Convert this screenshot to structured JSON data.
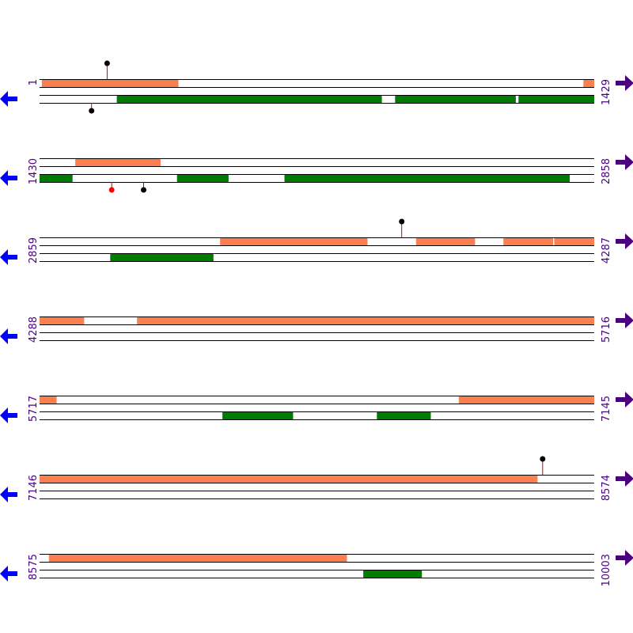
{
  "colors": {
    "forward_feature": "#fa8050",
    "reverse_feature": "#007d00",
    "track_line": "#000000",
    "left_arrow": "#0000ff",
    "right_arrow": "#4b0082",
    "label": "#4b0082",
    "pin_black": "#000000",
    "pin_red": "#ff0000",
    "pin_stem": "#cc0000"
  },
  "icons": {
    "left": "left-arrow-icon",
    "right": "right-arrow-icon"
  },
  "rows": [
    {
      "start": 1,
      "end": 1429,
      "start_label": "1",
      "end_label": "1429",
      "forward": [
        [
          7,
          358
        ],
        [
          1402,
          1429
        ]
      ],
      "reverse": [
        [
          200,
          882
        ],
        [
          917,
          1227
        ],
        [
          1235,
          1429
        ]
      ],
      "markers": [
        {
          "pos": 175,
          "strand": "forward",
          "color": "black"
        },
        {
          "pos": 135,
          "strand": "reverse",
          "color": "black"
        }
      ]
    },
    {
      "start": 1430,
      "end": 2858,
      "start_label": "1430",
      "end_label": "2858",
      "forward": [
        [
          1522,
          1741
        ]
      ],
      "reverse": [
        [
          1430,
          1514
        ],
        [
          1784,
          1916
        ],
        [
          2061,
          2795
        ]
      ],
      "markers": [
        {
          "pos": 1616,
          "strand": "reverse",
          "color": "red"
        },
        {
          "pos": 1698,
          "strand": "reverse",
          "color": "black"
        }
      ]
    },
    {
      "start": 2859,
      "end": 4287,
      "start_label": "2859",
      "end_label": "4287",
      "forward": [
        [
          3324,
          3703
        ],
        [
          3829,
          3980
        ],
        [
          4054,
          4181
        ],
        [
          4185,
          4287
        ]
      ],
      "reverse": [
        [
          3041,
          3306
        ]
      ],
      "markers": [
        {
          "pos": 3792,
          "strand": "forward",
          "color": "black"
        }
      ]
    },
    {
      "start": 4288,
      "end": 5716,
      "start_label": "4288",
      "end_label": "5716",
      "forward": [
        [
          4288,
          4402
        ],
        [
          4539,
          5716
        ]
      ],
      "reverse": [],
      "markers": []
    },
    {
      "start": 5717,
      "end": 7145,
      "start_label": "5717",
      "end_label": "7145",
      "forward": [
        [
          5717,
          5760
        ],
        [
          6797,
          7145
        ]
      ],
      "reverse": [
        [
          6188,
          6369
        ],
        [
          6586,
          6724
        ]
      ],
      "markers": []
    },
    {
      "start": 7146,
      "end": 8574,
      "start_label": "7146",
      "end_label": "8574",
      "forward": [
        [
          7146,
          8428
        ]
      ],
      "reverse": [],
      "markers": [
        {
          "pos": 8442,
          "strand": "forward",
          "color": "black"
        }
      ]
    },
    {
      "start": 8575,
      "end": 10003,
      "start_label": "8575",
      "end_label": "10003",
      "forward": [
        [
          8599,
          9366
        ]
      ],
      "reverse": [
        [
          9409,
          9559
        ]
      ],
      "markers": []
    }
  ]
}
